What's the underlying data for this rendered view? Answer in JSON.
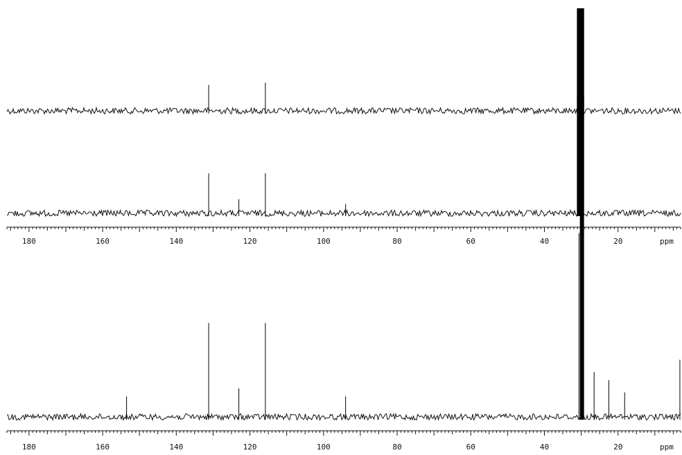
{
  "chart_data": [
    {
      "type": "line",
      "title": "",
      "xlabel": "",
      "ylabel": "",
      "xlim": [
        186,
        3
      ],
      "x_reversed": true,
      "grid": false,
      "axis": null,
      "peaks": [
        {
          "ppm": 131.2,
          "relative_height": 0.25
        },
        {
          "ppm": 115.8,
          "relative_height": 0.27
        },
        {
          "ppm": 29.8,
          "relative_height": 1.0,
          "thick": true
        },
        {
          "ppm": 30.6,
          "relative_height": 1.0,
          "thick": true
        }
      ]
    },
    {
      "type": "line",
      "title": "",
      "xlabel": "",
      "ylabel": "",
      "xlim": [
        186,
        3
      ],
      "x_reversed": true,
      "grid": false,
      "axis": {
        "ticks": [
          180,
          160,
          140,
          120,
          100,
          80,
          60,
          40,
          20
        ],
        "unit": "ppm"
      },
      "peaks": [
        {
          "ppm": 131.2,
          "relative_height": 0.34
        },
        {
          "ppm": 123.0,
          "relative_height": 0.12
        },
        {
          "ppm": 115.8,
          "relative_height": 0.34
        },
        {
          "ppm": 94.0,
          "relative_height": 0.08
        },
        {
          "ppm": 29.8,
          "relative_height": 1.0,
          "thick": true
        },
        {
          "ppm": 30.6,
          "relative_height": 1.0,
          "thick": true
        }
      ]
    },
    {
      "type": "line",
      "title": "",
      "xlabel": "",
      "ylabel": "",
      "xlim": [
        186,
        3
      ],
      "x_reversed": true,
      "grid": false,
      "axis": {
        "ticks": [
          180,
          160,
          140,
          120,
          100,
          80,
          60,
          40,
          20
        ],
        "unit": "ppm"
      },
      "peaks": [
        {
          "ppm": 153.5,
          "relative_height": 0.05
        },
        {
          "ppm": 131.2,
          "relative_height": 0.23
        },
        {
          "ppm": 123.0,
          "relative_height": 0.07
        },
        {
          "ppm": 115.8,
          "relative_height": 0.23
        },
        {
          "ppm": 94.0,
          "relative_height": 0.05
        },
        {
          "ppm": 30.6,
          "relative_height": 0.45
        },
        {
          "ppm": 29.8,
          "relative_height": 1.0,
          "thick": true
        },
        {
          "ppm": 26.5,
          "relative_height": 0.11
        },
        {
          "ppm": 22.5,
          "relative_height": 0.09
        },
        {
          "ppm": 18.2,
          "relative_height": 0.06
        },
        {
          "ppm": 3.2,
          "relative_height": 0.14
        }
      ]
    }
  ]
}
